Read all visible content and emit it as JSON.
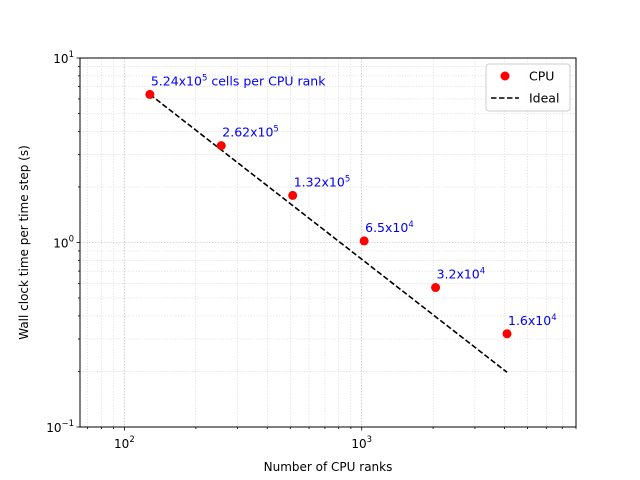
{
  "chart_data": {
    "type": "scatter",
    "title": "",
    "xlabel": "Number of CPU ranks",
    "ylabel": "Wall clock time per time step (s)",
    "xscale": "log",
    "yscale": "log",
    "xlim": [
      65,
      8000
    ],
    "ylim": [
      0.1,
      10
    ],
    "grid": true,
    "legend_position": "top-right",
    "x_ticks": [
      {
        "value": 100,
        "base": "10",
        "exp": "2"
      },
      {
        "value": 1000,
        "base": "10",
        "exp": "3"
      }
    ],
    "y_ticks": [
      {
        "value": 0.1,
        "base": "10",
        "exp": "−1"
      },
      {
        "value": 1,
        "base": "10",
        "exp": "0"
      },
      {
        "value": 10,
        "base": "10",
        "exp": "1"
      }
    ],
    "series": [
      {
        "name": "CPU",
        "kind": "scatter",
        "color": "#ff0000",
        "x": [
          128,
          256,
          512,
          1024,
          2048,
          4096
        ],
        "y": [
          6.35,
          3.35,
          1.8,
          1.02,
          0.57,
          0.32
        ]
      },
      {
        "name": "Ideal",
        "kind": "line",
        "style": "dashed",
        "color": "#000000",
        "x": [
          128,
          4096
        ],
        "y": [
          6.35,
          0.198
        ]
      }
    ],
    "annotations": [
      {
        "mantissa": "5.24x10",
        "exp": "5",
        "suffix": " cells per CPU rank",
        "x": 128,
        "y": 6.35
      },
      {
        "mantissa": "2.62x10",
        "exp": "5",
        "suffix": "",
        "x": 256,
        "y": 3.35
      },
      {
        "mantissa": "1.32x10",
        "exp": "5",
        "suffix": "",
        "x": 512,
        "y": 1.8
      },
      {
        "mantissa": "6.5x10",
        "exp": "4",
        "suffix": "",
        "x": 1024,
        "y": 1.02
      },
      {
        "mantissa": "3.2x10",
        "exp": "4",
        "suffix": "",
        "x": 2048,
        "y": 0.57
      },
      {
        "mantissa": "1.6x10",
        "exp": "4",
        "suffix": "",
        "x": 4096,
        "y": 0.32
      }
    ],
    "annotation_color": "#0000ff"
  }
}
